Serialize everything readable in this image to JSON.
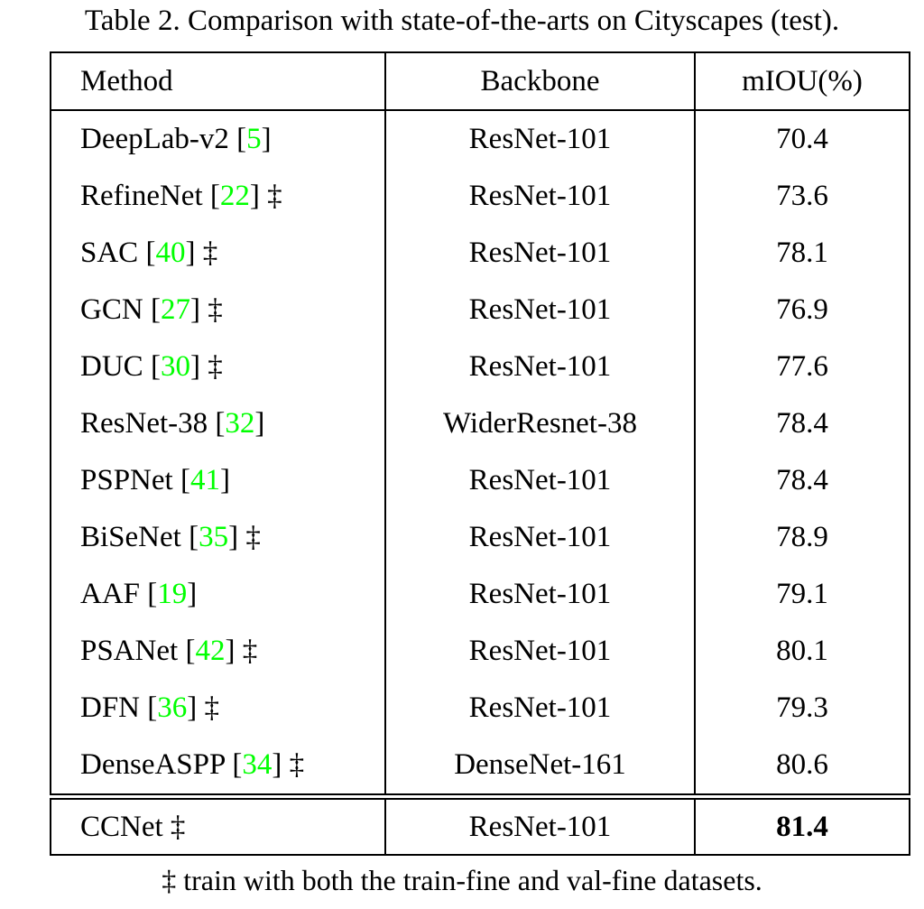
{
  "title": "Table 2. Comparison with state-of-the-arts on Cityscapes (test).",
  "table": {
    "columns": [
      "Method",
      "Backbone",
      "mIOU(%)"
    ],
    "rows": [
      {
        "method": "DeepLab-v2",
        "cite": "5",
        "dagger": false,
        "backbone": "ResNet-101",
        "miou": "70.4",
        "final": false
      },
      {
        "method": "RefineNet",
        "cite": "22",
        "dagger": true,
        "backbone": "ResNet-101",
        "miou": "73.6",
        "final": false
      },
      {
        "method": "SAC",
        "cite": "40",
        "dagger": true,
        "backbone": "ResNet-101",
        "miou": "78.1",
        "final": false
      },
      {
        "method": "GCN",
        "cite": "27",
        "dagger": true,
        "backbone": "ResNet-101",
        "miou": "76.9",
        "final": false
      },
      {
        "method": "DUC",
        "cite": "30",
        "dagger": true,
        "backbone": "ResNet-101",
        "miou": "77.6",
        "final": false
      },
      {
        "method": "ResNet-38",
        "cite": "32",
        "dagger": false,
        "backbone": "WiderResnet-38",
        "miou": "78.4",
        "final": false
      },
      {
        "method": "PSPNet",
        "cite": "41",
        "dagger": false,
        "backbone": "ResNet-101",
        "miou": "78.4",
        "final": false
      },
      {
        "method": "BiSeNet",
        "cite": "35",
        "dagger": true,
        "backbone": "ResNet-101",
        "miou": "78.9",
        "final": false
      },
      {
        "method": "AAF",
        "cite": "19",
        "dagger": false,
        "backbone": "ResNet-101",
        "miou": "79.1",
        "final": false
      },
      {
        "method": "PSANet",
        "cite": "42",
        "dagger": true,
        "backbone": "ResNet-101",
        "miou": "80.1",
        "final": false
      },
      {
        "method": "DFN",
        "cite": "36",
        "dagger": true,
        "backbone": "ResNet-101",
        "miou": "79.3",
        "final": false
      },
      {
        "method": "DenseASPP",
        "cite": "34",
        "dagger": true,
        "backbone": "DenseNet-161",
        "miou": "80.6",
        "final": false
      },
      {
        "method": "CCNet",
        "cite": "",
        "dagger": true,
        "backbone": "ResNet-101",
        "miou": "81.4",
        "final": true
      }
    ]
  },
  "symbols": {
    "cite_open": "[",
    "cite_close": "]",
    "dagger": "‡"
  },
  "footnote": "‡ train with both the train-fine and val-fine datasets.",
  "colors": {
    "citation_green": "#00ff00",
    "text": "#000000",
    "border": "#000000",
    "background": "#ffffff"
  }
}
